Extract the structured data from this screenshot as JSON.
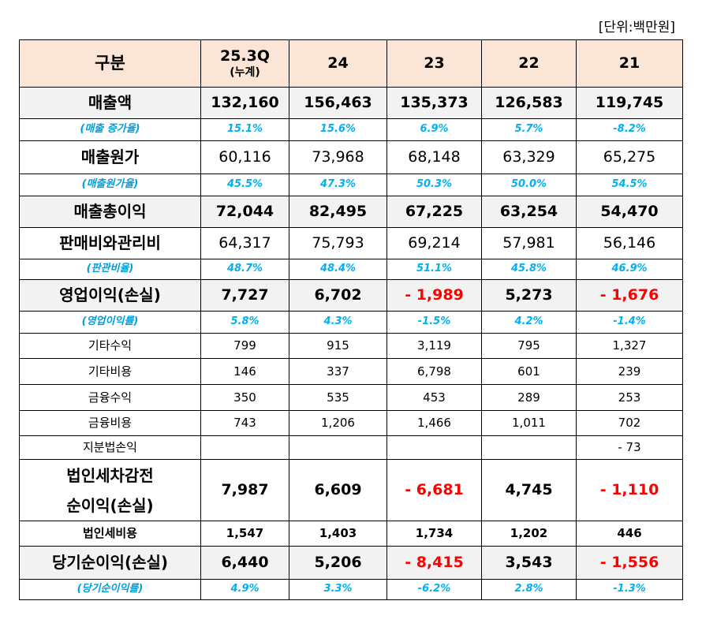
{
  "unit": "[단위:백만원]",
  "header": [
    "구분",
    [
      "25.3Q",
      "(누계)"
    ],
    "24",
    "23",
    "22",
    "21"
  ],
  "rows": [
    {
      "label": "매출액",
      "values": [
        "132,160",
        "156,463",
        "135,373",
        "126,583",
        "119,745"
      ]
    },
    {
      "label": "(매출 증가율)",
      "values": [
        "15.1%",
        "15.6%",
        "6.9%",
        "5.7%",
        "-8.2%"
      ]
    },
    {
      "label": "매출원가",
      "values": [
        "60,116",
        "73,968",
        "68,148",
        "63,329",
        "65,275"
      ]
    },
    {
      "label": "(매출원가율)",
      "values": [
        "45.5%",
        "47.3%",
        "50.3%",
        "50.0%",
        "54.5%"
      ]
    },
    {
      "label": "매출총이익",
      "values": [
        "72,044",
        "82,495",
        "67,225",
        "63,254",
        "54,470"
      ]
    },
    {
      "label": "판매비와관리비",
      "values": [
        "64,317",
        "75,793",
        "69,214",
        "57,981",
        "56,146"
      ]
    },
    {
      "label": "(판관비율)",
      "values": [
        "48.7%",
        "48.4%",
        "51.1%",
        "45.8%",
        "46.9%"
      ]
    },
    {
      "label": "영업이익(손실)",
      "values": [
        "7,727",
        "6,702",
        "- 1,989",
        "5,273",
        "- 1,676"
      ]
    },
    {
      "label": "(영업이익률)",
      "values": [
        "5.8%",
        "4.3%",
        "-1.5%",
        "4.2%",
        "-1.4%"
      ]
    },
    {
      "label": "기타수익",
      "values": [
        "799",
        "915",
        "3,119",
        "795",
        "1,327"
      ]
    },
    {
      "label": "기타비용",
      "values": [
        "146",
        "337",
        "6,798",
        "601",
        "239"
      ]
    },
    {
      "label": "금융수익",
      "values": [
        "350",
        "535",
        "453",
        "289",
        "253"
      ]
    },
    {
      "label": "금융비용",
      "values": [
        "743",
        "1,206",
        "1,466",
        "1,011",
        "702"
      ]
    },
    {
      "label": "지분법손익",
      "values": [
        null,
        null,
        null,
        null,
        "-   73"
      ]
    },
    {
      "label": [
        "법인세차감전",
        "순이익(손실)"
      ],
      "values": [
        "7,987",
        "6,609",
        "- 6,681",
        "4,745",
        "- 1,110"
      ]
    },
    {
      "label": "법인세비용",
      "values": [
        "1,547",
        "1,403",
        "1,734",
        "1,202",
        "446"
      ]
    },
    {
      "label": "당기순이익(손실)",
      "values": [
        "6,440",
        "5,206",
        "- 8,415",
        "3,543",
        "- 1,556"
      ]
    },
    {
      "label": "(당기순이익률)",
      "values": [
        "4.9%",
        "3.3%",
        "-6.2%",
        "2.8%",
        "-1.3%"
      ]
    }
  ]
}
